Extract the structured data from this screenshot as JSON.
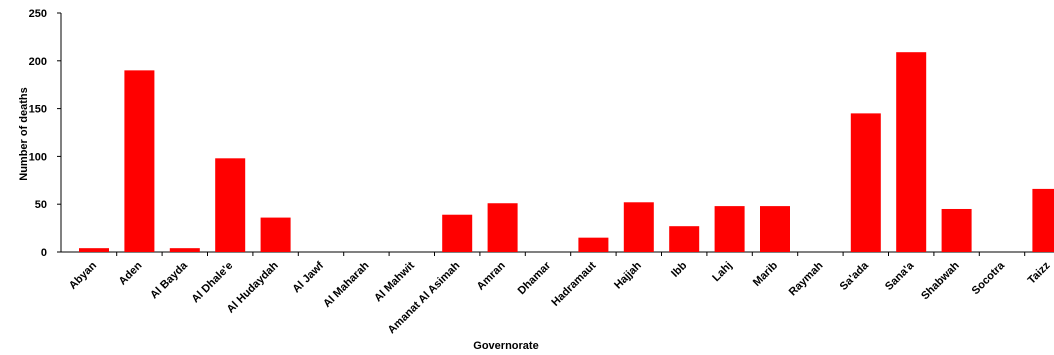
{
  "chart_data": {
    "type": "bar",
    "title": "",
    "xlabel": "Governorate",
    "ylabel": "Number of deaths",
    "ylim": [
      0,
      250
    ],
    "yticks": [
      0,
      50,
      100,
      150,
      200,
      250
    ],
    "grid": false,
    "legend": "none",
    "bar_color": "#ff0000",
    "categories": [
      "Abyan",
      "Aden",
      "Al Bayda",
      "Al Dhale'e",
      "Al Hudaydah",
      "Al Jawf",
      "Al Maharah",
      "Al Mahwit",
      "Amanat Al Asimah",
      "Amran",
      "Dhamar",
      "Hadramaut",
      "Hajjah",
      "Ibb",
      "Lahj",
      "Marib",
      "Raymah",
      "Sa'ada",
      "Sana'a",
      "Shabwah",
      "Socotra",
      "Taizz"
    ],
    "values": [
      4,
      190,
      4,
      98,
      36,
      0,
      0,
      0,
      39,
      51,
      0,
      15,
      52,
      27,
      48,
      48,
      0,
      145,
      209,
      45,
      0,
      66
    ]
  }
}
